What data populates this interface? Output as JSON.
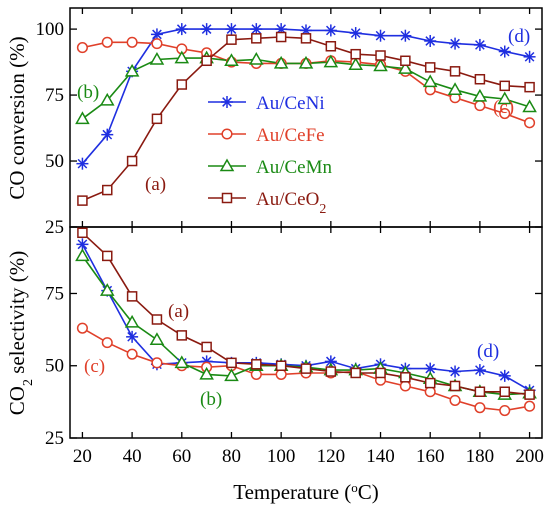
{
  "chart_data": [
    {
      "type": "line",
      "ylabel": "CO conversion (%)",
      "xlim": [
        15,
        205
      ],
      "ylim": [
        25,
        108
      ],
      "yticks": [
        25,
        50,
        75,
        100
      ],
      "x": [
        20,
        30,
        40,
        50,
        60,
        70,
        80,
        90,
        100,
        110,
        120,
        130,
        140,
        150,
        160,
        170,
        180,
        190,
        200
      ],
      "series": [
        {
          "name": "Au/CeNi",
          "marker": "asterisk",
          "color": "#1f2fe0",
          "values": [
            49,
            60,
            84,
            98,
            100,
            100,
            100,
            100,
            100,
            99.5,
            99.5,
            98.5,
            97.5,
            97.5,
            95.5,
            94.5,
            94,
            91.5,
            89.5
          ]
        },
        {
          "name": "Au/CeFe",
          "marker": "circle",
          "color": "#e0402a",
          "values": [
            93,
            95,
            95,
            94.5,
            92.5,
            91,
            87.5,
            87,
            87,
            87,
            88,
            87.5,
            86.5,
            84,
            77,
            74,
            71,
            68,
            64.5
          ]
        },
        {
          "name": "Au/CeMn",
          "marker": "triangle",
          "color": "#1a8a14",
          "values": [
            66,
            73,
            84,
            88.5,
            89,
            89,
            88,
            88.5,
            87,
            87,
            87.5,
            86.5,
            86,
            85,
            80,
            77,
            74.5,
            73.5,
            70.5
          ]
        },
        {
          "name": "Au/CeO2",
          "marker": "square",
          "color": "#8a1a10",
          "values": [
            35,
            39,
            50,
            66,
            79,
            88,
            96,
            96.5,
            97,
            96.5,
            93.5,
            90.5,
            90,
            88,
            85.5,
            84,
            81,
            78.5,
            78
          ]
        }
      ],
      "annotations": [
        "(a)",
        "(b)",
        "(c)",
        "(d)"
      ]
    },
    {
      "type": "line",
      "ylabel_pre": "CO",
      "ylabel_sub": "2",
      "ylabel_post": " selectivity (%)",
      "xlabel_main": "Temperature (",
      "xlabel_sup": "o",
      "xlabel_end": "C)",
      "xlim": [
        15,
        205
      ],
      "ylim": [
        25,
        98
      ],
      "yticks": [
        25,
        50,
        75
      ],
      "xticks": [
        20,
        40,
        60,
        80,
        100,
        120,
        140,
        160,
        180,
        200
      ],
      "x": [
        20,
        30,
        40,
        50,
        60,
        70,
        80,
        90,
        100,
        110,
        120,
        130,
        140,
        150,
        160,
        170,
        180,
        190,
        200
      ],
      "series": [
        {
          "name": "Au/CeNi",
          "marker": "asterisk",
          "color": "#1f2fe0",
          "values": [
            92,
            76,
            60,
            50.5,
            51,
            51.5,
            51,
            51,
            50.5,
            50,
            51.5,
            49,
            50.5,
            49,
            49,
            48,
            48.5,
            46.5,
            41.5
          ]
        },
        {
          "name": "Au/CeFe",
          "marker": "circle",
          "color": "#e0402a",
          "values": [
            63,
            58,
            54,
            51,
            50,
            49.5,
            50,
            47,
            47,
            47.5,
            47.5,
            48,
            45,
            43,
            41,
            38,
            35.5,
            34.5,
            36
          ]
        },
        {
          "name": "Au/CeMn",
          "marker": "triangle",
          "color": "#1a8a14",
          "values": [
            88,
            76,
            65,
            59,
            51,
            47,
            46.5,
            50,
            50,
            49.5,
            48.5,
            48.5,
            49,
            47.5,
            45.5,
            43,
            41,
            40,
            40.5
          ]
        },
        {
          "name": "Au/CeO2",
          "marker": "square",
          "color": "#8a1a10",
          "values": [
            96,
            88,
            74,
            66,
            60.5,
            56.5,
            51,
            50.5,
            50,
            49,
            48,
            47.5,
            47.5,
            46,
            44,
            43,
            41,
            41,
            40
          ]
        }
      ],
      "annotations": [
        "(a)",
        "(b)",
        "(c)",
        "(d)"
      ]
    }
  ],
  "legend": [
    {
      "pre": "Au/CeNi",
      "sub": "",
      "color": "#1f2fe0",
      "marker": "asterisk"
    },
    {
      "pre": "Au/CeFe",
      "sub": "",
      "color": "#e0402a",
      "marker": "circle"
    },
    {
      "pre": "Au/CeMn",
      "sub": "",
      "color": "#1a8a14",
      "marker": "triangle"
    },
    {
      "pre": "Au/CeO",
      "sub": "2",
      "color": "#8a1a10",
      "marker": "square"
    }
  ]
}
